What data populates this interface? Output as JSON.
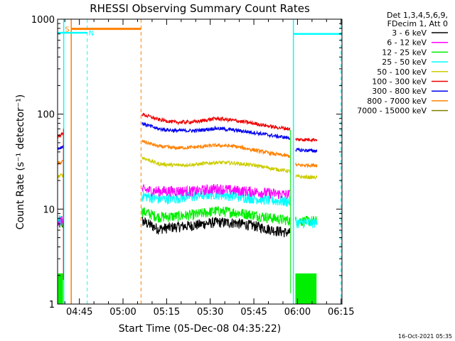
{
  "chart_data": {
    "type": "line",
    "title": "RHESSI Observing Summary Count Rates",
    "xlabel": "Start Time (05-Dec-08 04:35:22)",
    "ylabel": "Count Rate (s⁻¹ detector⁻¹)",
    "y_scale": "log",
    "ylim": [
      1,
      1000
    ],
    "xlim_min": [
      277.5,
      375.3
    ],
    "x_ticks": [
      {
        "min": 285,
        "label": "04:45"
      },
      {
        "min": 300,
        "label": "05:00"
      },
      {
        "min": 315,
        "label": "05:15"
      },
      {
        "min": 330,
        "label": "05:30"
      },
      {
        "min": 345,
        "label": "05:45"
      },
      {
        "min": 360,
        "label": "06:00"
      },
      {
        "min": 375,
        "label": "06:15"
      }
    ],
    "y_ticks": [
      {
        "value": 1,
        "label": "1"
      },
      {
        "value": 10,
        "label": "10"
      },
      {
        "value": 100,
        "label": "100"
      },
      {
        "value": 1000,
        "label": "1000"
      }
    ],
    "legend_header": [
      "Det 1,3,4,5,6,9,",
      "FDecim 1, Att 0"
    ],
    "legend_position": "right",
    "segments_min": [
      [
        277.5,
        279.5
      ],
      [
        306.5,
        357.5
      ],
      [
        359.3,
        366.7
      ]
    ],
    "series": [
      {
        "name": "3 - 6 keV",
        "color": "#000000",
        "values": [
          [
            277.5,
            7
          ],
          [
            279.5,
            7
          ],
          [
            306.5,
            7.5
          ],
          [
            312,
            6.2
          ],
          [
            318,
            6.5
          ],
          [
            325,
            6.8
          ],
          [
            332,
            7.3
          ],
          [
            338,
            7.2
          ],
          [
            345,
            6.7
          ],
          [
            352,
            6.0
          ],
          [
            357.5,
            5.6
          ]
        ]
      },
      {
        "name": "6 - 12 keV",
        "color": "#ff00ff",
        "values": [
          [
            277.5,
            7.5
          ],
          [
            279.5,
            7.5
          ],
          [
            306.5,
            16
          ],
          [
            312,
            15.5
          ],
          [
            318,
            15.6
          ],
          [
            325,
            15.5
          ],
          [
            332,
            16.5
          ],
          [
            338,
            15.8
          ],
          [
            345,
            15.3
          ],
          [
            352,
            14.6
          ],
          [
            357.5,
            14.2
          ]
        ]
      },
      {
        "name": "12 - 25 keV",
        "color": "#00ee00",
        "values": [
          [
            277.5,
            7.3
          ],
          [
            279.5,
            7.3
          ],
          [
            306.5,
            9.5
          ],
          [
            312,
            8.3
          ],
          [
            318,
            8.4
          ],
          [
            325,
            8.8
          ],
          [
            332,
            9.6
          ],
          [
            338,
            9.3
          ],
          [
            345,
            8.7
          ],
          [
            352,
            8.0
          ],
          [
            357.5,
            7.6
          ],
          [
            359.3,
            7.5
          ],
          [
            366.7,
            7.5
          ]
        ]
      },
      {
        "name": "25 - 50 keV",
        "color": "#00ffff",
        "values": [
          [
            277.5,
            7.6
          ],
          [
            279.5,
            7.6
          ],
          [
            306.5,
            14
          ],
          [
            312,
            12.8
          ],
          [
            318,
            13
          ],
          [
            325,
            13.8
          ],
          [
            332,
            14.5
          ],
          [
            338,
            13.8
          ],
          [
            345,
            13
          ],
          [
            352,
            12.3
          ],
          [
            357.5,
            12
          ],
          [
            359.3,
            7.2
          ],
          [
            366.7,
            7.2
          ]
        ]
      },
      {
        "name": "50 - 100 keV",
        "color": "#cccc00",
        "values": [
          [
            277.5,
            22
          ],
          [
            279.5,
            23
          ],
          [
            306.5,
            35
          ],
          [
            312,
            30
          ],
          [
            318,
            29
          ],
          [
            325,
            29.5
          ],
          [
            332,
            31
          ],
          [
            338,
            30.5
          ],
          [
            345,
            29
          ],
          [
            352,
            26.5
          ],
          [
            357.5,
            25
          ],
          [
            359.3,
            22
          ],
          [
            366.7,
            21.5
          ]
        ]
      },
      {
        "name": "100 - 300 keV",
        "color": "#ee0000",
        "values": [
          [
            277.5,
            58
          ],
          [
            279.5,
            62
          ],
          [
            306.5,
            100
          ],
          [
            312,
            88
          ],
          [
            318,
            82
          ],
          [
            325,
            83
          ],
          [
            332,
            90
          ],
          [
            338,
            86
          ],
          [
            345,
            80
          ],
          [
            352,
            73
          ],
          [
            357.5,
            70
          ],
          [
            359.3,
            54
          ],
          [
            366.7,
            54
          ]
        ]
      },
      {
        "name": "300 - 800 keV",
        "color": "#0000ee",
        "values": [
          [
            277.5,
            43
          ],
          [
            279.5,
            46
          ],
          [
            306.5,
            80
          ],
          [
            312,
            70
          ],
          [
            318,
            67
          ],
          [
            325,
            67
          ],
          [
            332,
            71
          ],
          [
            338,
            68
          ],
          [
            345,
            64
          ],
          [
            352,
            59
          ],
          [
            357.5,
            56
          ],
          [
            359.3,
            42
          ],
          [
            366.7,
            41
          ]
        ]
      },
      {
        "name": "800 - 7000 keV",
        "color": "#ff8000",
        "values": [
          [
            277.5,
            30
          ],
          [
            279.5,
            32
          ],
          [
            306.5,
            52
          ],
          [
            312,
            46
          ],
          [
            318,
            44
          ],
          [
            325,
            45
          ],
          [
            332,
            47
          ],
          [
            338,
            46
          ],
          [
            345,
            42
          ],
          [
            352,
            38
          ],
          [
            357.5,
            36
          ],
          [
            359.3,
            29
          ],
          [
            366.7,
            29
          ]
        ]
      },
      {
        "name": "7000 - 15000 keV",
        "color": "#808000",
        "values": []
      }
    ],
    "annotations": [
      {
        "text": "S",
        "color": "#ff8000"
      },
      {
        "text": "N",
        "color": "#00ffff"
      }
    ],
    "footer_timestamp": "16-Oct-2021 05:35"
  }
}
